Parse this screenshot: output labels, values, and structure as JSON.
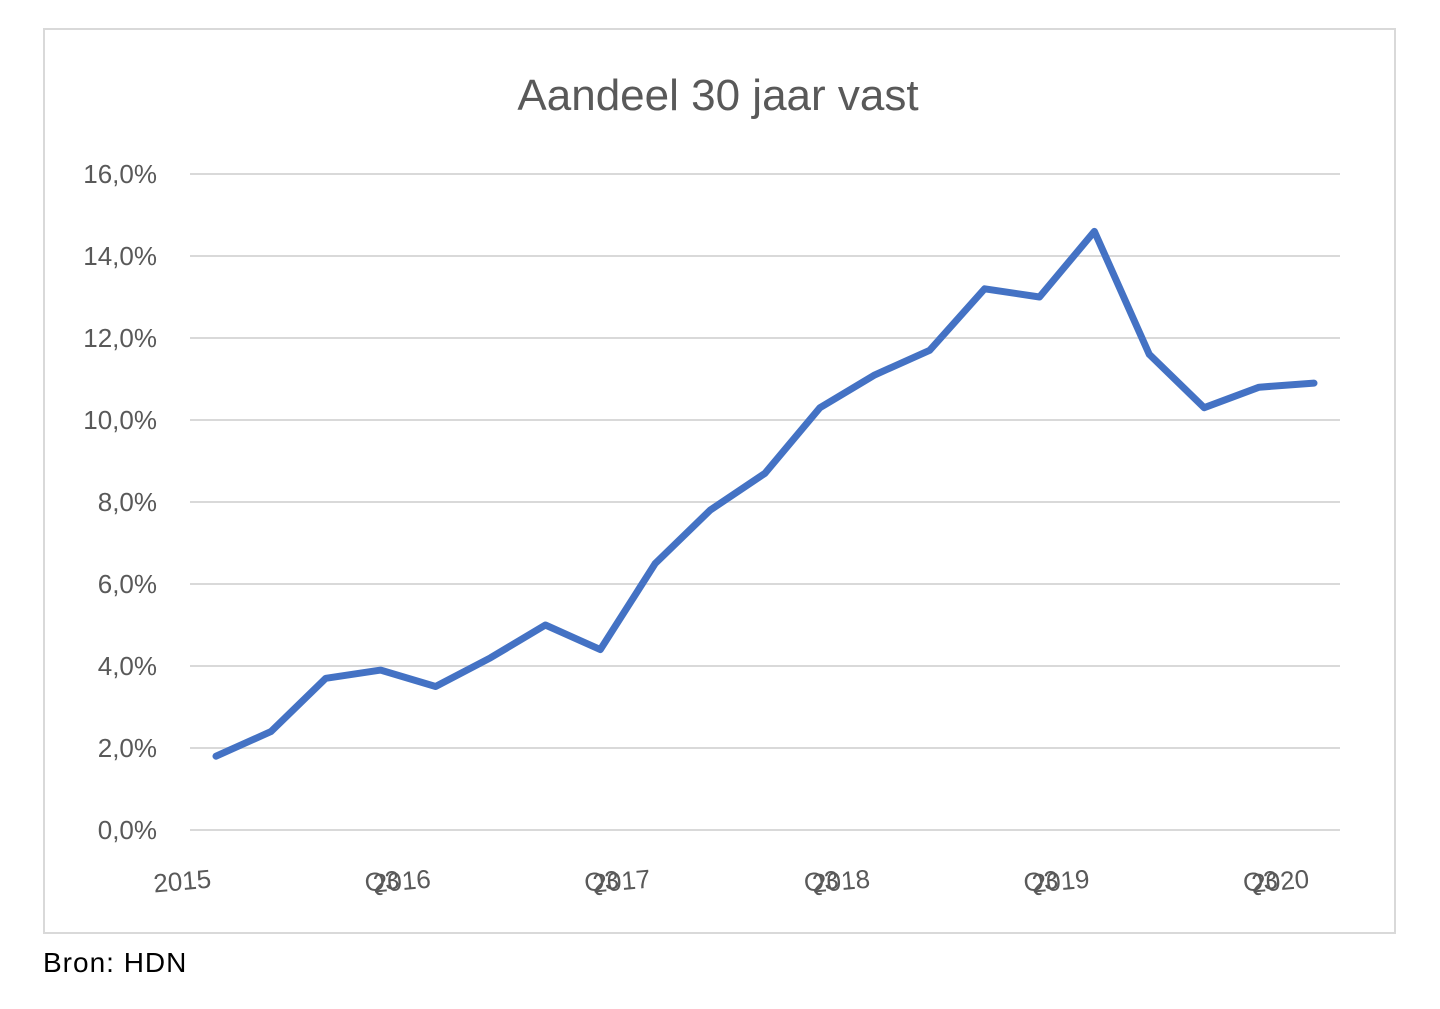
{
  "chart_data": {
    "type": "line",
    "title": "Aandeel 30 jaar vast",
    "xlabel": "",
    "ylabel": "",
    "x_tick_labels": [
      "2015",
      "Q3",
      "2016",
      "Q3",
      "2017",
      "Q3",
      "2018",
      "Q3",
      "2019",
      "Q3",
      "2020"
    ],
    "y_tick_labels": [
      "0,0%",
      "2,0%",
      "4,0%",
      "6,0%",
      "8,0%",
      "10,0%",
      "12,0%",
      "14,0%",
      "16,0%"
    ],
    "ylim": [
      0,
      16
    ],
    "grid": "horizontal",
    "legend": "none",
    "series_color": "#4472c4",
    "series": [
      {
        "values": [
          1.8,
          2.4,
          3.7,
          3.9,
          3.5,
          4.2,
          5.0,
          4.4,
          6.5,
          7.8,
          8.7,
          10.3,
          11.1,
          11.7,
          13.2,
          13.0,
          14.6,
          11.6,
          10.3,
          10.8,
          10.9
        ]
      }
    ]
  },
  "footer": {
    "source": "Bron: HDN"
  }
}
